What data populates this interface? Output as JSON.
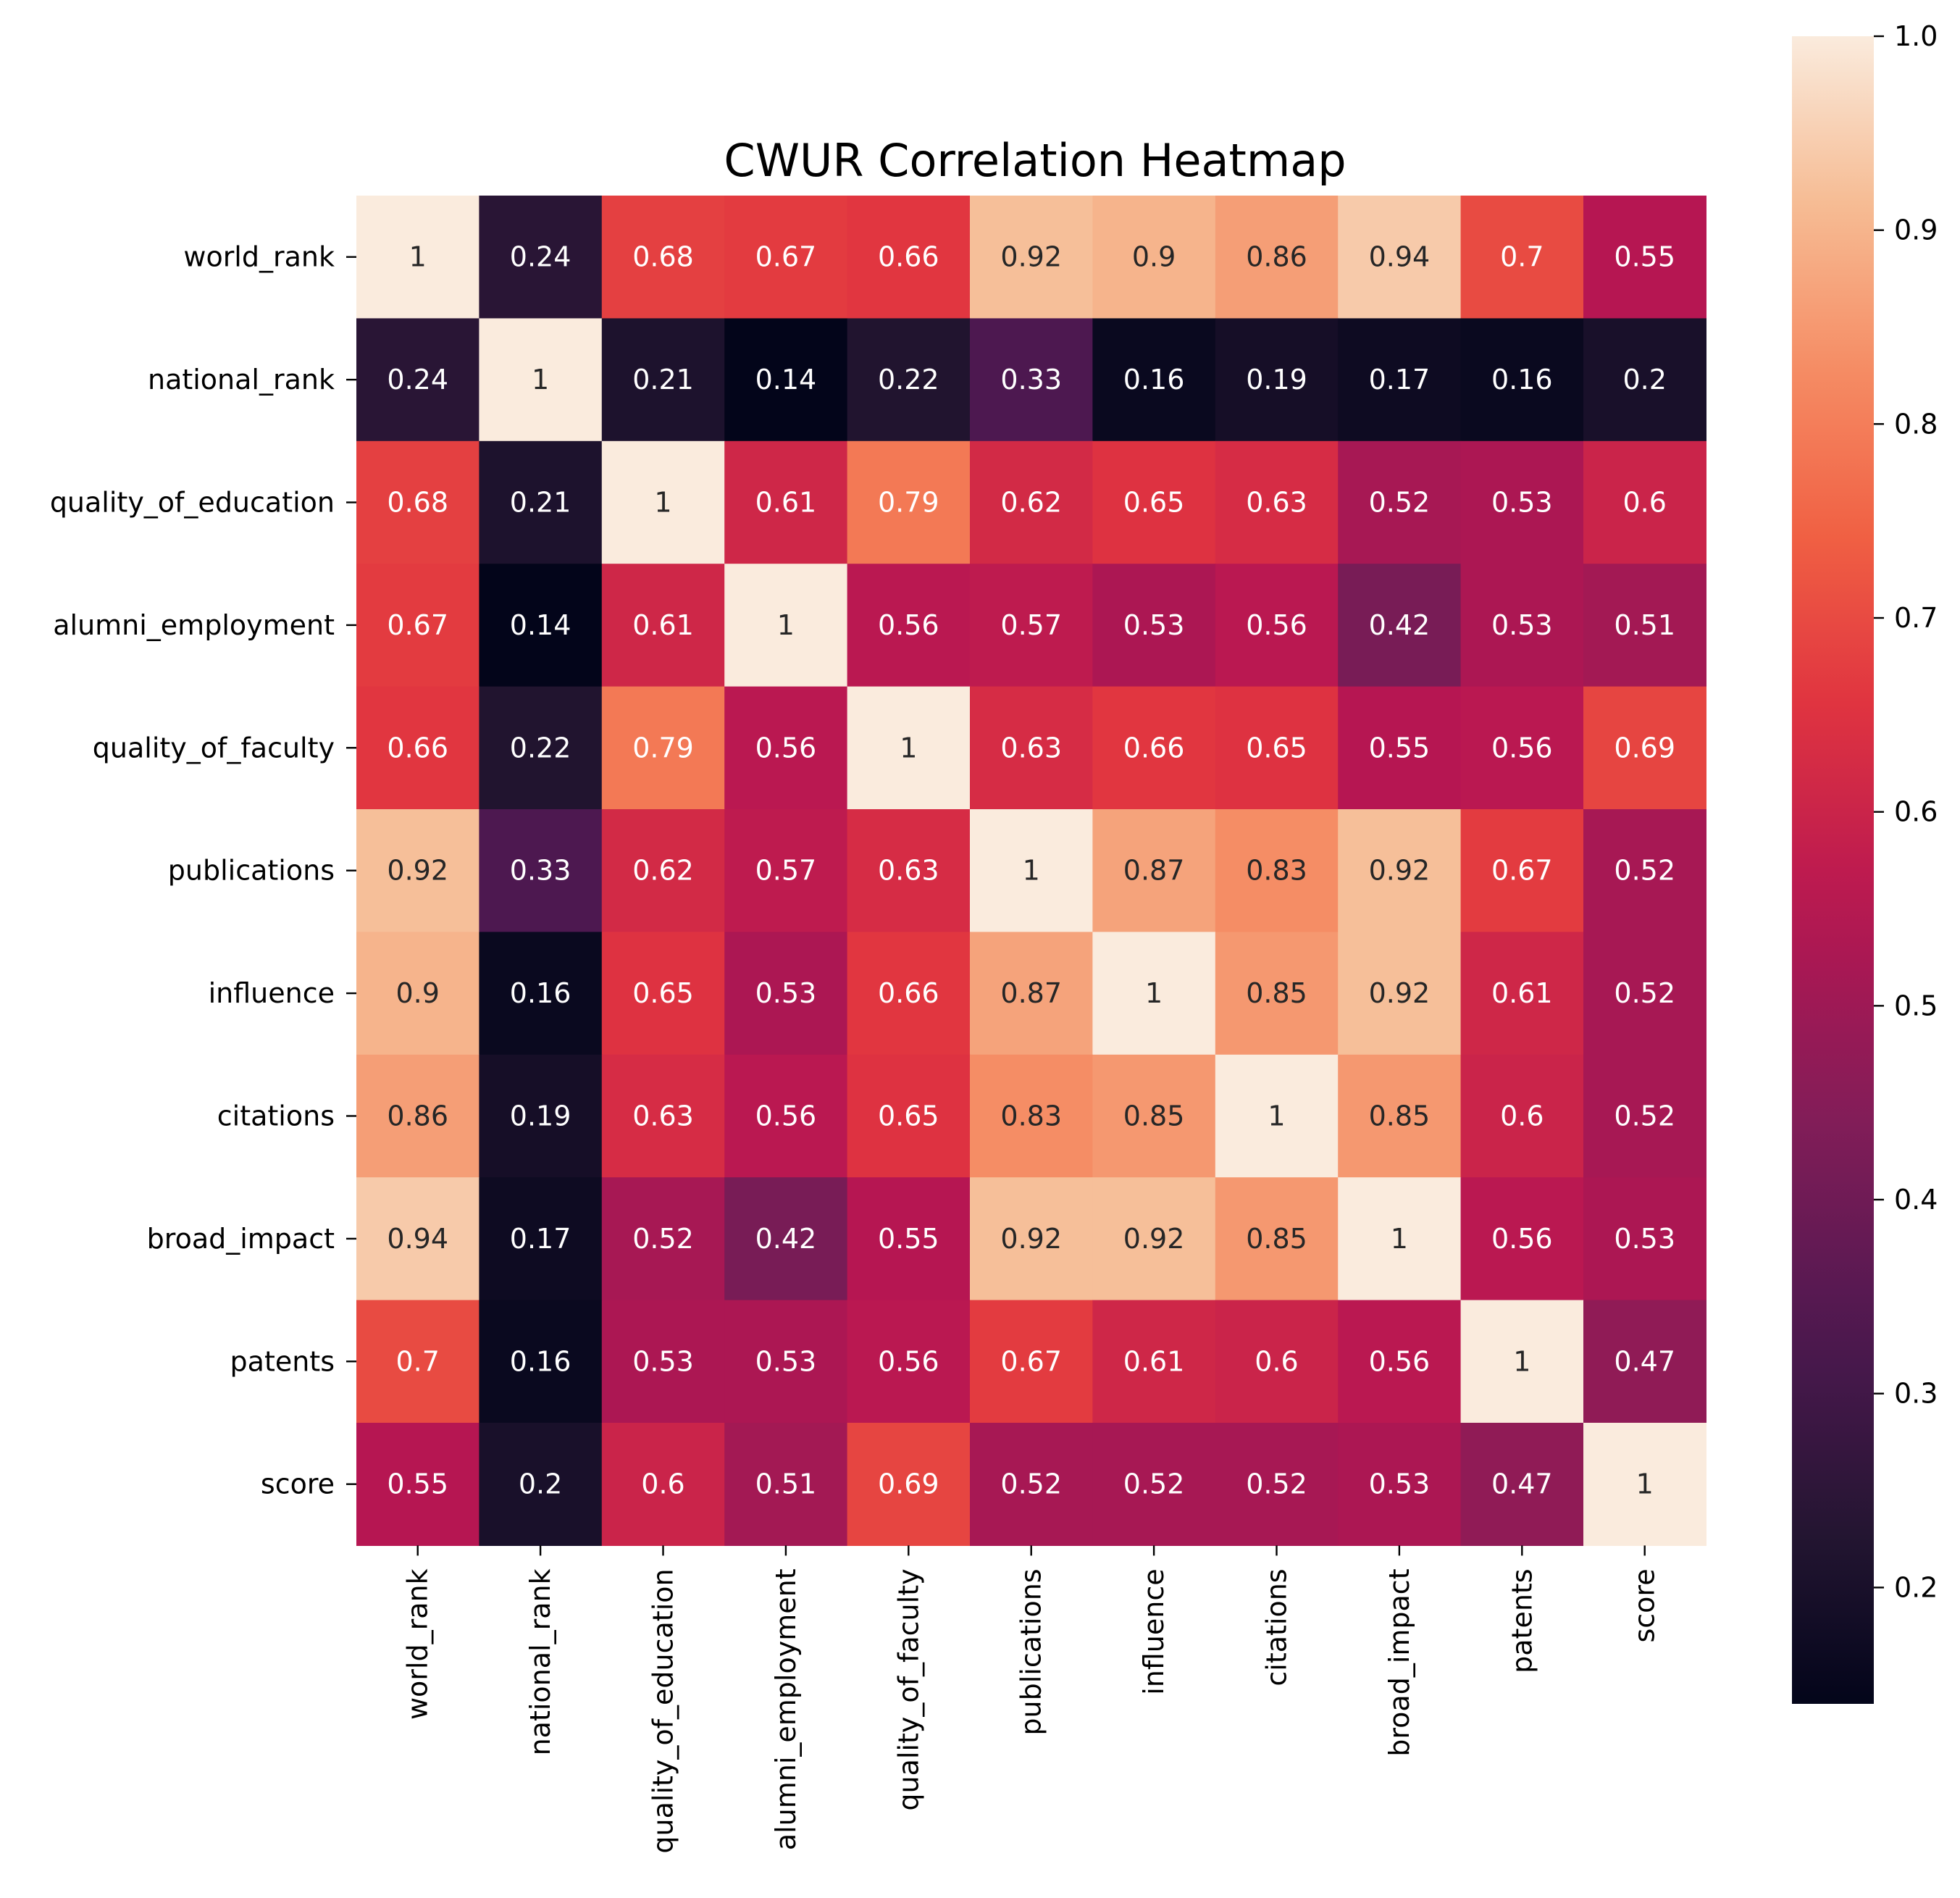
{
  "chart_data": {
    "type": "heatmap",
    "title": "CWUR Correlation Heatmap",
    "xlabel": "",
    "ylabel": "",
    "labels": [
      "world_rank",
      "national_rank",
      "quality_of_education",
      "alumni_employment",
      "quality_of_faculty",
      "publications",
      "influence",
      "citations",
      "broad_impact",
      "patents",
      "score"
    ],
    "matrix": [
      [
        1,
        0.24,
        0.68,
        0.67,
        0.66,
        0.92,
        0.9,
        0.86,
        0.94,
        0.7,
        0.55
      ],
      [
        0.24,
        1,
        0.21,
        0.14,
        0.22,
        0.33,
        0.16,
        0.19,
        0.17,
        0.16,
        0.2
      ],
      [
        0.68,
        0.21,
        1,
        0.61,
        0.79,
        0.62,
        0.65,
        0.63,
        0.52,
        0.53,
        0.6
      ],
      [
        0.67,
        0.14,
        0.61,
        1,
        0.56,
        0.57,
        0.53,
        0.56,
        0.42,
        0.53,
        0.51
      ],
      [
        0.66,
        0.22,
        0.79,
        0.56,
        1,
        0.63,
        0.66,
        0.65,
        0.55,
        0.56,
        0.69
      ],
      [
        0.92,
        0.33,
        0.62,
        0.57,
        0.63,
        1,
        0.87,
        0.83,
        0.92,
        0.67,
        0.52
      ],
      [
        0.9,
        0.16,
        0.65,
        0.53,
        0.66,
        0.87,
        1,
        0.85,
        0.92,
        0.61,
        0.52
      ],
      [
        0.86,
        0.19,
        0.63,
        0.56,
        0.65,
        0.83,
        0.85,
        1,
        0.85,
        0.6,
        0.52
      ],
      [
        0.94,
        0.17,
        0.52,
        0.42,
        0.55,
        0.92,
        0.92,
        0.85,
        1,
        0.56,
        0.53
      ],
      [
        0.7,
        0.16,
        0.53,
        0.53,
        0.56,
        0.67,
        0.61,
        0.6,
        0.56,
        1,
        0.47
      ],
      [
        0.55,
        0.2,
        0.6,
        0.51,
        0.69,
        0.52,
        0.52,
        0.52,
        0.53,
        0.47,
        1
      ]
    ],
    "annotations": [
      [
        "1",
        "0.24",
        "0.68",
        "0.67",
        "0.66",
        "0.92",
        "0.9",
        "0.86",
        "0.94",
        "0.7",
        "0.55"
      ],
      [
        "0.24",
        "1",
        "0.21",
        "0.14",
        "0.22",
        "0.33",
        "0.16",
        "0.19",
        "0.17",
        "0.16",
        "0.2"
      ],
      [
        "0.68",
        "0.21",
        "1",
        "0.61",
        "0.79",
        "0.62",
        "0.65",
        "0.63",
        "0.52",
        "0.53",
        "0.6"
      ],
      [
        "0.67",
        "0.14",
        "0.61",
        "1",
        "0.56",
        "0.57",
        "0.53",
        "0.56",
        "0.42",
        "0.53",
        "0.51"
      ],
      [
        "0.66",
        "0.22",
        "0.79",
        "0.56",
        "1",
        "0.63",
        "0.66",
        "0.65",
        "0.55",
        "0.56",
        "0.69"
      ],
      [
        "0.92",
        "0.33",
        "0.62",
        "0.57",
        "0.63",
        "1",
        "0.87",
        "0.83",
        "0.92",
        "0.67",
        "0.52"
      ],
      [
        "0.9",
        "0.16",
        "0.65",
        "0.53",
        "0.66",
        "0.87",
        "1",
        "0.85",
        "0.92",
        "0.61",
        "0.52"
      ],
      [
        "0.86",
        "0.19",
        "0.63",
        "0.56",
        "0.65",
        "0.83",
        "0.85",
        "1",
        "0.85",
        "0.6",
        "0.52"
      ],
      [
        "0.94",
        "0.17",
        "0.52",
        "0.42",
        "0.55",
        "0.92",
        "0.92",
        "0.85",
        "1",
        "0.56",
        "0.53"
      ],
      [
        "0.7",
        "0.16",
        "0.53",
        "0.53",
        "0.56",
        "0.67",
        "0.61",
        "0.6",
        "0.56",
        "1",
        "0.47"
      ],
      [
        "0.55",
        "0.2",
        "0.6",
        "0.51",
        "0.69",
        "0.52",
        "0.52",
        "0.52",
        "0.53",
        "0.47",
        "1"
      ]
    ],
    "colorbar": {
      "colormap": "rocket",
      "range": [
        0.14,
        1.0
      ],
      "ticks": [
        0.2,
        0.3,
        0.4,
        0.5,
        0.6,
        0.7,
        0.8,
        0.9,
        1.0
      ],
      "tick_labels": [
        "0.2",
        "0.3",
        "0.4",
        "0.5",
        "0.6",
        "0.7",
        "0.8",
        "0.9",
        "1.0"
      ]
    },
    "grid": false,
    "legend": "none"
  }
}
